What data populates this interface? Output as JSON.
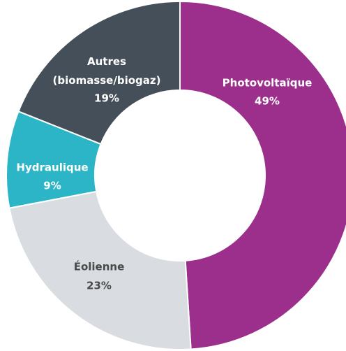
{
  "chart_data": {
    "type": "donut",
    "categories": [
      "Photovoltaïque",
      "Éolienne",
      "Hydraulique",
      "Autres (biomasse/biogaz)"
    ],
    "values": [
      49,
      23,
      9,
      19
    ],
    "value_labels": [
      "49%",
      "23%",
      "9%",
      "19%"
    ],
    "colors": [
      "#9c2f8b",
      "#d9dde1",
      "#2bb5c6",
      "#454f59"
    ],
    "label_colors": [
      "#ffffff",
      "#4a4a4a",
      "#ffffff",
      "#ffffff"
    ]
  }
}
